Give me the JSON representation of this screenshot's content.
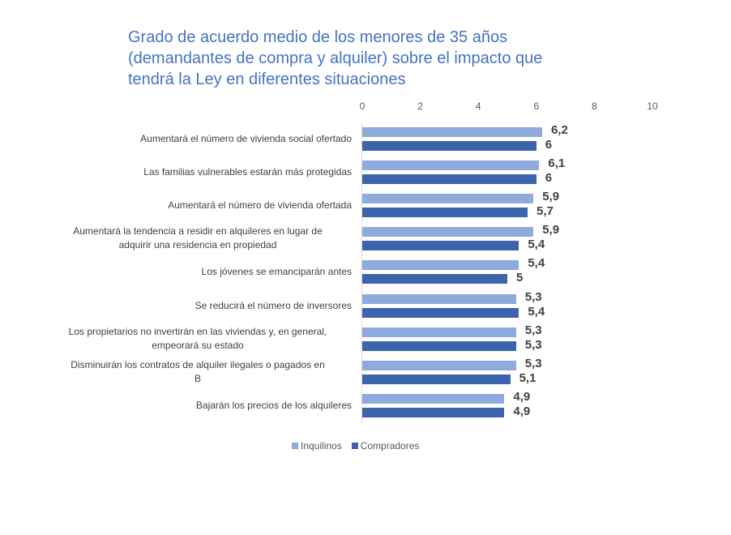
{
  "chart_data": {
    "type": "bar",
    "orientation": "horizontal",
    "title": "Grado de acuerdo medio de los menores de 35 años (demandantes de compra y alquiler) sobre el impacto que tendrá la Ley en diferentes situaciones",
    "title_lines": [
      "Grado de acuerdo medio de los menores de 35 años",
      "(demandantes de compra y alquiler) sobre el impacto que",
      "tendrá la Ley en diferentes situaciones"
    ],
    "xlabel": "",
    "ylabel": "",
    "xlim": [
      0,
      10
    ],
    "ticks": [
      "0",
      "2",
      "4",
      "6",
      "8",
      "10"
    ],
    "grid": false,
    "legend_position": "bottom",
    "categories": [
      "Aumentará el número de vivienda social ofertado",
      "Las familias vulnerables estarán más protegidas",
      "Aumentará el número de vivienda ofertada",
      "Aumentará la tendencia a residir en alquileres en lugar de adquirir una residencia en propiedad",
      "Los jóvenes se emanciparán antes",
      "Se reducirá el número de inversores",
      "Los propietarios no invertirán en las viviendas y, en general, empeorará su estado",
      "Disminuirán los contratos de alquiler ilegales o pagados en B",
      "Bajarán los precios de los alquileres"
    ],
    "series": [
      {
        "name": "Inquilinos",
        "color": "#8faadc",
        "values": [
          6.2,
          6.1,
          5.9,
          5.9,
          5.4,
          5.3,
          5.3,
          5.3,
          4.9
        ]
      },
      {
        "name": "Compradores",
        "color": "#3c64ad",
        "values": [
          6,
          6,
          5.7,
          5.4,
          5,
          5.4,
          5.3,
          5.1,
          4.9
        ]
      }
    ]
  },
  "rows": [
    {
      "label_lines": [
        "Aumentará el número de vivienda social ofertado"
      ],
      "inq": 6.2,
      "inq_label": "6,2",
      "comp": 6,
      "comp_label": "6"
    },
    {
      "label_lines": [
        "Las familias vulnerables estarán más protegidas"
      ],
      "inq": 6.1,
      "inq_label": "6,1",
      "comp": 6,
      "comp_label": "6"
    },
    {
      "label_lines": [
        "Aumentará el número de vivienda ofertada"
      ],
      "inq": 5.9,
      "inq_label": "5,9",
      "comp": 5.7,
      "comp_label": "5,7"
    },
    {
      "label_lines": [
        "Aumentará la tendencia a residir en alquileres en lugar de",
        "adquirir una residencia en propiedad"
      ],
      "inq": 5.9,
      "inq_label": "5,9",
      "comp": 5.4,
      "comp_label": "5,4"
    },
    {
      "label_lines": [
        "Los jóvenes se emanciparán antes"
      ],
      "inq": 5.4,
      "inq_label": "5,4",
      "comp": 5,
      "comp_label": "5"
    },
    {
      "label_lines": [
        "Se reducirá el número de inversores"
      ],
      "inq": 5.3,
      "inq_label": "5,3",
      "comp": 5.4,
      "comp_label": "5,4"
    },
    {
      "label_lines": [
        "Los propietarios no invertirán en las viviendas y, en general,",
        "empeorará su estado"
      ],
      "inq": 5.3,
      "inq_label": "5,3",
      "comp": 5.3,
      "comp_label": "5,3"
    },
    {
      "label_lines": [
        "Disminuirán los contratos de alquiler ilegales o pagados en",
        "B"
      ],
      "inq": 5.3,
      "inq_label": "5,3",
      "comp": 5.1,
      "comp_label": "5,1"
    },
    {
      "label_lines": [
        "Bajarán los precios de los alquileres"
      ],
      "inq": 4.9,
      "inq_label": "4,9",
      "comp": 4.9,
      "comp_label": "4,9"
    }
  ],
  "legend": {
    "items": [
      {
        "label": "Inquilinos",
        "color": "#8faadc"
      },
      {
        "label": "Compradores",
        "color": "#3c64ad"
      }
    ]
  }
}
